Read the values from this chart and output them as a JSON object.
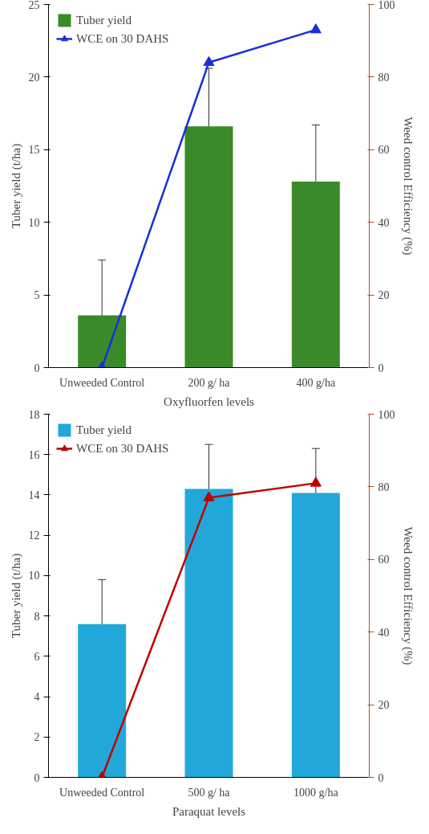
{
  "chart_data": [
    {
      "type": "bar",
      "xlabel": "Oxyfluorfen levels",
      "ylabel": "Tuber yield (t/ha)",
      "y2label": "Weed control Efficiency (%)",
      "categories": [
        "Unweeded Control",
        "200 g/ ha",
        "400 g/ha"
      ],
      "ylim": [
        0,
        25
      ],
      "yticks": [
        0,
        5,
        10,
        15,
        20,
        25
      ],
      "y2lim": [
        0,
        100
      ],
      "y2ticks": [
        0,
        20,
        40,
        60,
        80,
        100
      ],
      "grid": false,
      "legend": "top left",
      "series": [
        {
          "name": "Tuber yield",
          "color": "#3a8a2a",
          "values": [
            3.6,
            16.6,
            12.8
          ],
          "errors": [
            3.8,
            4.0,
            3.9
          ]
        },
        {
          "name": "WCE on 30 DAHS",
          "type": "line",
          "axis": "y2",
          "color": "#1a2fd6",
          "marker": "triangle",
          "values": [
            0,
            84,
            93
          ]
        }
      ]
    },
    {
      "type": "bar",
      "xlabel": "Paraquat levels",
      "ylabel": "Tuber yield (t/ha)",
      "y2label": "Weed control Efficiency (%)",
      "categories": [
        "Unweeded Control",
        "500 g/ ha",
        "1000 g/ha"
      ],
      "ylim": [
        0,
        18
      ],
      "yticks": [
        0,
        2,
        4,
        6,
        8,
        10,
        12,
        14,
        16,
        18
      ],
      "y2lim": [
        0,
        100
      ],
      "y2ticks": [
        0,
        20,
        40,
        60,
        80,
        100
      ],
      "grid": false,
      "legend": "top left",
      "series": [
        {
          "name": "Tuber yield",
          "color": "#22a8d8",
          "values": [
            7.6,
            14.3,
            14.1
          ],
          "errors": [
            2.2,
            2.2,
            2.2
          ]
        },
        {
          "name": "WCE on 30 DAHS",
          "type": "line",
          "axis": "y2",
          "color": "#c00000",
          "marker": "triangle",
          "values": [
            0,
            77,
            81
          ]
        }
      ]
    }
  ]
}
